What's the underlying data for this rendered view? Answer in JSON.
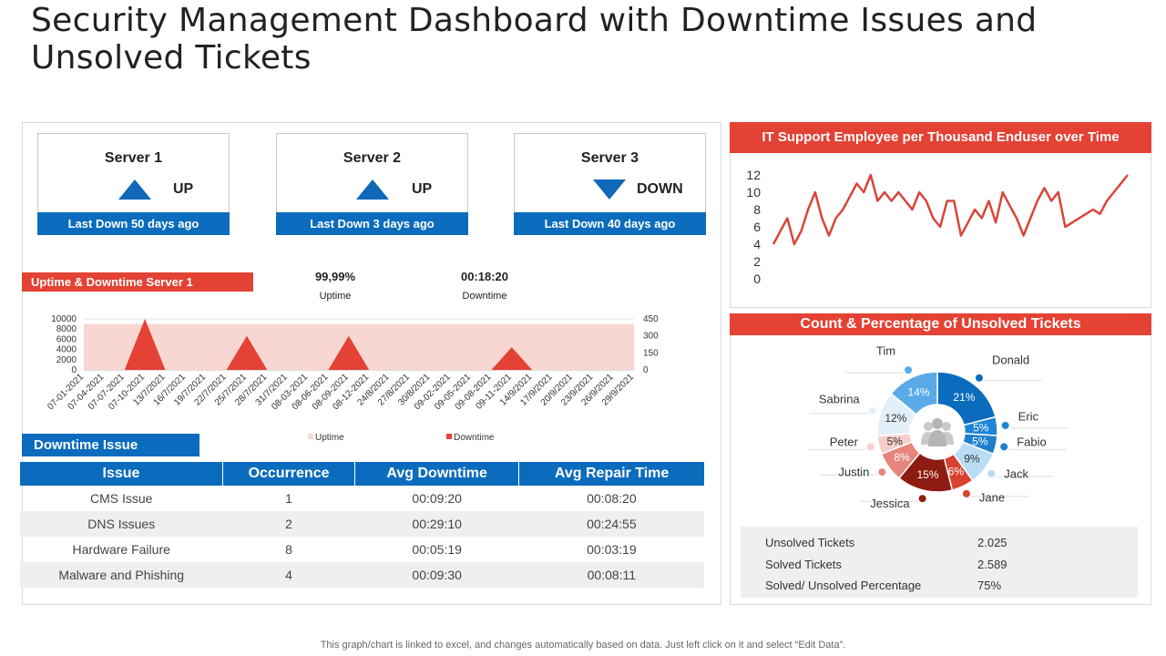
{
  "title": "Security Management Dashboard with Downtime Issues and Unsolved Tickets",
  "servers": [
    {
      "name": "Server 1",
      "status": "UP",
      "direction": "up",
      "last_down": "Last Down 50 days ago"
    },
    {
      "name": "Server 2",
      "status": "UP",
      "direction": "up",
      "last_down": "Last Down 3 days ago"
    },
    {
      "name": "Server 3",
      "status": "DOWN",
      "direction": "down",
      "last_down": "Last Down 40 days ago"
    }
  ],
  "uptime_section": {
    "title": "Uptime & Downtime Server 1",
    "uptime_value": "99,99%",
    "uptime_label": "Uptime",
    "downtime_value": "00:18:20",
    "downtime_label": "Downtime"
  },
  "downtime_issue": {
    "title": "Downtime Issue",
    "columns": [
      "Issue",
      "Occurrence",
      "Avg Downtime",
      "Avg Repair Time"
    ],
    "rows": [
      [
        "CMS Issue",
        "1",
        "00:09:20",
        "00:08:20"
      ],
      [
        "DNS Issues",
        "2",
        "00:29:10",
        "00:24:55"
      ],
      [
        "Hardware Failure",
        "8",
        "00:05:19",
        "00:03:19"
      ],
      [
        "Malware and Phishing",
        "4",
        "00:09:30",
        "00:08:11"
      ]
    ]
  },
  "it_support_title": "IT Support Employee per Thousand Enduser over Time",
  "unsolved_title": "Count & Percentage of Unsolved Tickets",
  "ticket_stats": [
    {
      "label": "Unsolved Tickets",
      "value": "2.025"
    },
    {
      "label": "Solved Tickets",
      "value": "2.589"
    },
    {
      "label": "Solved/ Unsolved Percentage",
      "value": "75%"
    }
  ],
  "footnote": "This graph/chart is linked to excel, and changes automatically based on data. Just left click on it and select “Edit Data”.",
  "colors": {
    "blue": "#0b6cbd",
    "red": "#e34234",
    "uptime_fill": "#f8d6d2",
    "line": "#d9453a"
  },
  "chart_data": [
    {
      "type": "area",
      "title": "Uptime & Downtime Server 1",
      "categories": [
        "07-01-2021",
        "07-04-2021",
        "07-07-2021",
        "07-10-2021",
        "13/7/2021",
        "16/7/2021",
        "19/7/2021",
        "22/7/2021",
        "25/7/2021",
        "28/7/2021",
        "31/7/2021",
        "08-03-2021",
        "08-06-2021",
        "08-09-2021",
        "08-12-2021",
        "24/8/2021",
        "27/8/2021",
        "30/8/2021",
        "09-02-2021",
        "09-05-2021",
        "09-08-2021",
        "09-11-2021",
        "14/9/2021",
        "17/9/2021",
        "20/9/2021",
        "23/9/2021",
        "26/9/2021",
        "29/9/2021"
      ],
      "series": [
        {
          "name": "Uptime",
          "axis": "left",
          "values": [
            9000,
            9000,
            9000,
            9000,
            9000,
            9000,
            9000,
            9000,
            9000,
            9000,
            9000,
            9000,
            9000,
            9000,
            9000,
            9000,
            9000,
            9000,
            9000,
            9000,
            9000,
            9000,
            9000,
            9000,
            9000,
            9000,
            9000,
            9000
          ]
        },
        {
          "name": "Downtime",
          "axis": "right",
          "values": [
            0,
            0,
            0,
            450,
            0,
            0,
            0,
            0,
            300,
            0,
            0,
            0,
            0,
            300,
            0,
            0,
            0,
            0,
            0,
            0,
            0,
            200,
            0,
            0,
            0,
            0,
            0,
            0
          ]
        }
      ],
      "left_ticks": [
        "10000",
        "8000",
        "6000",
        "4000",
        "2000",
        "0"
      ],
      "right_ticks": [
        "450",
        "300",
        "150",
        "0"
      ],
      "ylim_left": [
        0,
        10000
      ],
      "ylim_right": [
        0,
        450
      ],
      "legend": [
        "Uptime",
        "Downtime"
      ]
    },
    {
      "type": "line",
      "title": "IT Support Employee per Thousand Enduser over Time",
      "y_ticks": [
        "12",
        "10",
        "8",
        "6",
        "4",
        "2",
        "0"
      ],
      "ylim": [
        0,
        12
      ],
      "values": [
        4,
        5.5,
        7,
        4,
        5.5,
        8,
        10,
        7,
        5,
        7,
        8,
        9.5,
        11,
        10,
        12,
        9,
        10,
        9,
        10,
        9,
        8,
        10,
        9,
        7,
        6,
        9,
        9,
        5,
        6.5,
        8,
        7,
        9,
        6.5,
        10,
        8.5,
        7,
        5,
        7,
        9,
        10.5,
        9,
        10,
        6,
        6.5,
        7,
        7.5,
        8,
        7.5,
        9,
        10,
        11,
        12
      ]
    },
    {
      "type": "pie",
      "title": "Count & Percentage of Unsolved Tickets",
      "slices": [
        {
          "name": "Donald",
          "value": 21,
          "label": "21%",
          "color": "#0b6cbd"
        },
        {
          "name": "Eric",
          "value": 5,
          "label": "5%",
          "color": "#1b86d6"
        },
        {
          "name": "Fabio",
          "value": 5,
          "label": "5%",
          "color": "#1f7fce"
        },
        {
          "name": "Jack",
          "value": 9,
          "label": "9%",
          "color": "#b9dcf5"
        },
        {
          "name": "Jane",
          "value": 6,
          "label": "6%",
          "color": "#d94130"
        },
        {
          "name": "Jessica",
          "value": 15,
          "label": "15%",
          "color": "#8e1b12"
        },
        {
          "name": "Justin",
          "value": 8,
          "label": "8%",
          "color": "#e5857c"
        },
        {
          "name": "Peter",
          "value": 5,
          "label": "5%",
          "color": "#f6cfcb"
        },
        {
          "name": "Sabrina",
          "value": 12,
          "label": "12%",
          "color": "#e2eef8"
        },
        {
          "name": "Tim",
          "value": 14,
          "label": "14%",
          "color": "#5aaaea"
        }
      ]
    }
  ]
}
